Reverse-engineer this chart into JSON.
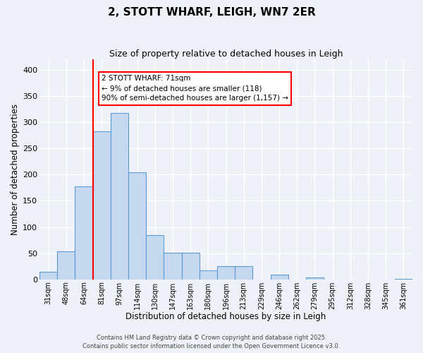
{
  "title": "2, STOTT WHARF, LEIGH, WN7 2ER",
  "subtitle": "Size of property relative to detached houses in Leigh",
  "xlabel": "Distribution of detached houses by size in Leigh",
  "ylabel": "Number of detached properties",
  "bar_labels": [
    "31sqm",
    "48sqm",
    "64sqm",
    "81sqm",
    "97sqm",
    "114sqm",
    "130sqm",
    "147sqm",
    "163sqm",
    "180sqm",
    "196sqm",
    "213sqm",
    "229sqm",
    "246sqm",
    "262sqm",
    "279sqm",
    "295sqm",
    "312sqm",
    "328sqm",
    "345sqm",
    "361sqm"
  ],
  "bar_values": [
    14,
    53,
    178,
    283,
    318,
    204,
    84,
    51,
    51,
    17,
    25,
    25,
    0,
    9,
    0,
    4,
    0,
    0,
    0,
    0,
    1
  ],
  "bar_color": "#c5d8f0",
  "bar_edge_color": "#5b9bd5",
  "ylim": [
    0,
    420
  ],
  "yticks": [
    0,
    50,
    100,
    150,
    200,
    250,
    300,
    350,
    400
  ],
  "red_line_index": 2,
  "annotation_title": "2 STOTT WHARF: 71sqm",
  "annotation_line1": "← 9% of detached houses are smaller (118)",
  "annotation_line2": "90% of semi-detached houses are larger (1,157) →",
  "background_color": "#eef2f8",
  "grid_color": "#ffffff",
  "footer_line1": "Contains HM Land Registry data © Crown copyright and database right 2025.",
  "footer_line2": "Contains public sector information licensed under the Open Government Licence v3.0."
}
